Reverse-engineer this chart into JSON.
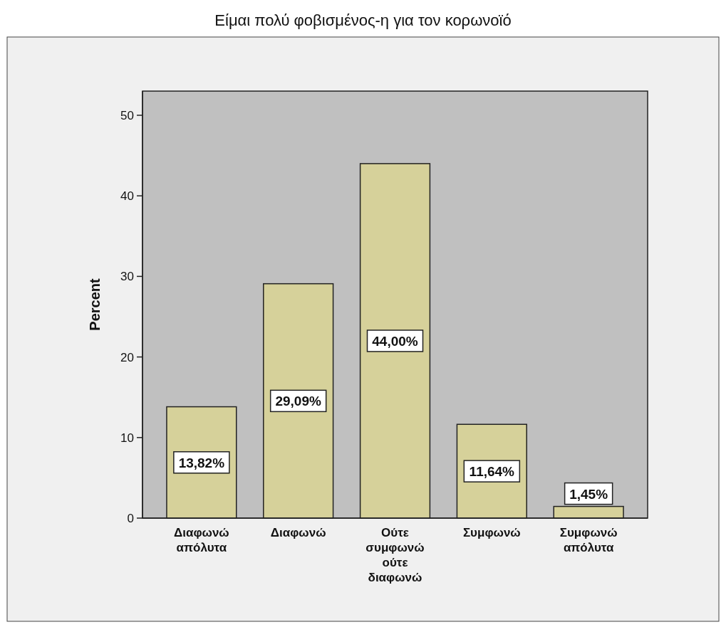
{
  "chart_data": {
    "type": "bar",
    "title": "Είμαι πολύ φοβισμένος-η για τον κορωνοϊό",
    "ylabel": "Percent",
    "categories": [
      "Διαφωνώ απόλυτα",
      "Διαφωνώ",
      "Ούτε συμφωνώ ούτε διαφωνώ",
      "Συμφωνώ",
      "Συμφωνώ απόλυτα"
    ],
    "values": [
      13.82,
      29.09,
      44.0,
      11.64,
      1.45
    ],
    "value_labels": [
      "13,82%",
      "29,09%",
      "44,00%",
      "11,64%",
      "1,45%"
    ],
    "color": "#d6d19a",
    "ylim": [
      0,
      53
    ],
    "yticks": [
      0,
      10,
      20,
      30,
      40,
      50
    ],
    "grid": false
  }
}
